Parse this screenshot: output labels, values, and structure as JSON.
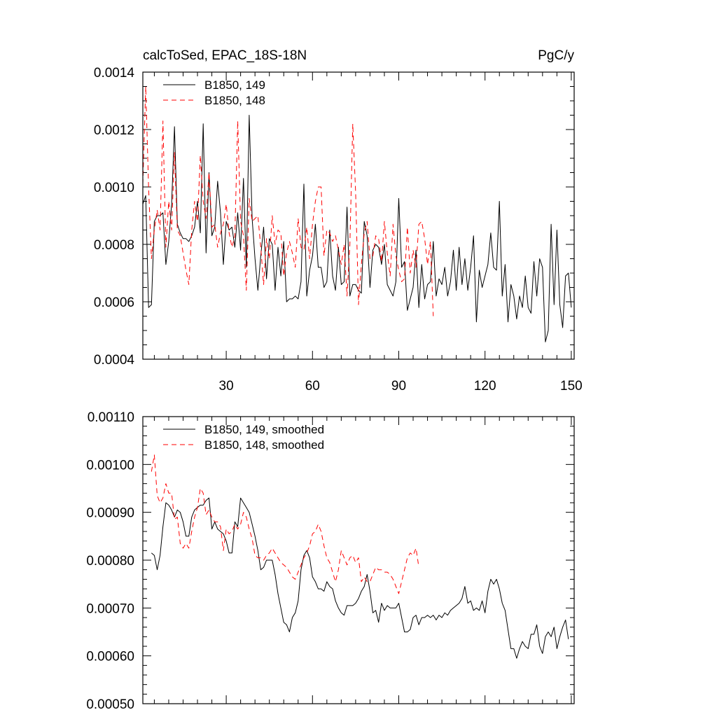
{
  "chart_data": [
    {
      "type": "line",
      "title_left": "calcToSed, EPAC_18S-18N",
      "title_right": "PgC/y",
      "xlim": [
        1,
        151
      ],
      "ylim": [
        0.0004,
        0.0014
      ],
      "x_ticks": [
        30,
        60,
        90,
        120,
        150
      ],
      "x_tick_labels": [
        "30",
        "60",
        "90",
        "120",
        "150"
      ],
      "y_ticks": [
        0.0004,
        0.0006,
        0.0008,
        0.001,
        0.0012,
        0.0014
      ],
      "y_tick_labels": [
        "0.0004",
        "0.0006",
        "0.0008",
        "0.0010",
        "0.0012",
        "0.0014"
      ],
      "grid": false,
      "legend_position": "top-left",
      "series": [
        {
          "name": "B1850, 149",
          "color": "#000000",
          "dash": "solid",
          "x_start": 1,
          "values": [
            0.00094,
            0.00097,
            0.00058,
            0.00059,
            0.00088,
            0.0009,
            0.0009,
            0.00091,
            0.00073,
            0.00081,
            0.00094,
            0.00121,
            0.00087,
            0.00084,
            0.00082,
            0.00082,
            0.00081,
            0.00083,
            0.00086,
            0.00095,
            0.00084,
            0.00122,
            0.00077,
            0.00105,
            0.00083,
            0.00086,
            0.00102,
            0.00091,
            0.00073,
            0.00088,
            0.00085,
            0.00086,
            0.00079,
            0.00091,
            0.00078,
            0.00103,
            0.00072,
            0.00125,
            0.00089,
            0.00075,
            0.00064,
            0.00076,
            0.00086,
            0.00068,
            0.00082,
            0.0008,
            0.00064,
            0.00079,
            0.00069,
            0.00081,
            0.0006,
            0.00061,
            0.00061,
            0.00062,
            0.00061,
            0.00067,
            0.00101,
            0.00062,
            0.00071,
            0.00076,
            0.00087,
            0.00072,
            0.00072,
            0.00065,
            0.00067,
            0.00085,
            0.00069,
            0.00064,
            0.00079,
            0.00066,
            0.00067,
            0.00093,
            0.00062,
            0.00066,
            0.00066,
            0.00064,
            0.00063,
            0.00088,
            0.00083,
            0.00065,
            0.00078,
            0.0008,
            0.00079,
            0.00073,
            0.0008,
            0.00066,
            0.00064,
            0.00062,
            0.00067,
            0.00096,
            0.00072,
            0.00074,
            0.00057,
            0.00061,
            0.00065,
            0.00078,
            0.00058,
            0.00073,
            0.00061,
            0.00066,
            0.00067,
            0.00081,
            0.00062,
            0.00068,
            0.00066,
            0.00072,
            0.00062,
            0.00067,
            0.00078,
            0.00064,
            0.00079,
            0.00066,
            0.00075,
            0.00064,
            0.00072,
            0.00083,
            0.00053,
            0.00071,
            0.00065,
            0.00069,
            0.00073,
            0.00084,
            0.00072,
            0.00071,
            0.00095,
            0.00062,
            0.00073,
            0.00053,
            0.00066,
            0.00062,
            0.00054,
            0.00062,
            0.00058,
            0.00069,
            0.00058,
            0.00056,
            0.00074,
            0.00062,
            0.00075,
            0.00072,
            0.00046,
            0.0005,
            0.00087,
            0.00059,
            0.00085,
            0.00059,
            0.00051,
            0.00069,
            0.0007,
            0.00058
          ]
        },
        {
          "name": "B1850, 148",
          "color": "#ff0000",
          "dash": "dashed",
          "x_start": 1,
          "values": [
            0.00101,
            0.00135,
            0.001,
            0.00075,
            0.00085,
            0.00092,
            0.00085,
            0.00123,
            0.00079,
            0.00095,
            0.00085,
            0.00112,
            0.00085,
            0.00083,
            0.00077,
            0.00071,
            0.00066,
            0.00085,
            0.00095,
            0.00088,
            0.00111,
            0.00095,
            0.00089,
            0.00105,
            0.00086,
            0.00087,
            0.00079,
            0.00084,
            0.00087,
            0.00094,
            0.00084,
            0.00079,
            0.00083,
            0.00123,
            0.00088,
            0.00083,
            0.00064,
            0.00096,
            0.00088,
            0.00089,
            0.0009,
            0.00079,
            0.00066,
            0.00082,
            0.00075,
            0.0009,
            0.0008,
            0.00085,
            0.00084,
            0.00069,
            0.00077,
            0.00081,
            0.00077,
            0.00072,
            0.00089,
            0.00079,
            0.00078,
            0.00086,
            0.00075,
            0.00087,
            0.00095,
            0.001,
            0.001,
            0.00076,
            0.00085,
            0.00084,
            0.00081,
            0.00083,
            0.00078,
            0.00073,
            0.0008,
            0.00062,
            0.0008,
            0.00122,
            0.00098,
            0.00059,
            0.00073,
            0.00084,
            0.00088,
            0.00075,
            0.00076,
            0.00083,
            0.00082,
            0.00074,
            0.00088,
            0.00077,
            0.00069,
            0.00087,
            0.00076,
            0.00071,
            0.00067,
            0.00068,
            0.00086,
            0.0007,
            0.00078,
            0.00072,
            0.00087,
            0.00088,
            0.00082,
            0.00073,
            0.00081,
            0.00055
          ]
        }
      ]
    },
    {
      "type": "line",
      "xlim": [
        1,
        151
      ],
      "ylim": [
        0.0005,
        0.0011
      ],
      "x_ticks": [
        30,
        60,
        90,
        120,
        150
      ],
      "y_ticks": [
        0.0005,
        0.0006,
        0.0007,
        0.0008,
        0.0009,
        0.001,
        0.0011
      ],
      "y_tick_labels": [
        "0.00050",
        "0.00060",
        "0.00070",
        "0.00080",
        "0.00090",
        "0.00100",
        "0.00110"
      ],
      "grid": false,
      "legend_position": "top-left",
      "series": [
        {
          "name": "B1850, 149, smoothed",
          "color": "#000000",
          "dash": "solid",
          "x_start": 4,
          "values": [
            0.000815,
            0.00081,
            0.00078,
            0.00081,
            0.00087,
            0.00092,
            0.000915,
            0.000905,
            0.00089,
            0.000905,
            0.0009,
            0.00088,
            0.00085,
            0.00085,
            0.00089,
            0.000905,
            0.00091,
            0.000915,
            0.000915,
            0.000925,
            0.00093,
            0.000865,
            0.00088,
            0.000865,
            0.00086,
            0.000855,
            0.00084,
            0.000815,
            0.000815,
            0.00088,
            0.00087,
            0.00093,
            0.00092,
            0.00091,
            0.0009,
            0.000875,
            0.00085,
            0.00082,
            0.00078,
            0.000785,
            0.0008,
            0.0008,
            0.0008,
            0.00077,
            0.00073,
            0.0007,
            0.00067,
            0.000665,
            0.00065,
            0.00068,
            0.00069,
            0.000715,
            0.00078,
            0.00081,
            0.00082,
            0.000805,
            0.000765,
            0.000755,
            0.00074,
            0.00074,
            0.000735,
            0.000755,
            0.000745,
            0.00074,
            0.000715,
            0.0007,
            0.00069,
            0.000685,
            0.000705,
            0.000705,
            0.000705,
            0.00071,
            0.00072,
            0.000735,
            0.000745,
            0.00077,
            0.000735,
            0.00069,
            0.000695,
            0.00067,
            0.00071,
            0.000695,
            0.000705,
            0.0007,
            0.0007,
            0.0007,
            0.00071,
            0.00068,
            0.00065,
            0.00065,
            0.000655,
            0.00068,
            0.000685,
            0.000665,
            0.00068,
            0.00068,
            0.000685,
            0.00068,
            0.000685,
            0.000675,
            0.000685,
            0.00068,
            0.00069,
            0.000685,
            0.000695,
            0.0007,
            0.000705,
            0.00071,
            0.00072,
            0.000745,
            0.00071,
            0.000715,
            0.000695,
            0.0007,
            0.000695,
            0.000715,
            0.00069,
            0.000735,
            0.00076,
            0.00075,
            0.00076,
            0.00074,
            0.00071,
            0.000695,
            0.000655,
            0.000615,
            0.000615,
            0.000595,
            0.000615,
            0.00063,
            0.00062,
            0.000615,
            0.000645,
            0.000645,
            0.000665,
            0.00062,
            0.000605,
            0.00064,
            0.00065,
            0.00064,
            0.00066,
            0.000615,
            0.00064,
            0.00066,
            0.000675,
            0.000635
          ]
        },
        {
          "name": "B1850, 148, smoothed",
          "color": "#ff0000",
          "dash": "dashed",
          "x_start": 4,
          "values": [
            0.000985,
            0.00102,
            0.000935,
            0.00092,
            0.00093,
            0.00096,
            0.00094,
            0.00094,
            0.000885,
            0.00089,
            0.000835,
            0.000825,
            0.000835,
            0.000825,
            0.00086,
            0.00089,
            0.00091,
            0.00095,
            0.00094,
            0.000895,
            0.000905,
            0.00089,
            0.00088,
            0.00088,
            0.00087,
            0.00082,
            0.000865,
            0.000855,
            0.00086,
            0.000875,
            0.000865,
            0.000875,
            0.0009,
            0.00089,
            0.000865,
            0.000845,
            0.00081,
            0.000805,
            0.000805,
            0.0008,
            0.00081,
            0.000815,
            0.000825,
            0.000815,
            0.000805,
            0.000795,
            0.00079,
            0.000785,
            0.000775,
            0.000765,
            0.00076,
            0.000775,
            0.00079,
            0.000805,
            0.000815,
            0.00083,
            0.000855,
            0.00086,
            0.000875,
            0.00086,
            0.00083,
            0.000805,
            0.000795,
            0.000775,
            0.000755,
            0.00078,
            0.00082,
            0.000805,
            0.00079,
            0.000805,
            0.00081,
            0.000795,
            0.000805,
            0.000755,
            0.000765,
            0.000755,
            0.000755,
            0.00077,
            0.000785,
            0.00078,
            0.00078,
            0.000775,
            0.000775,
            0.00077,
            0.00076,
            0.000745,
            0.00073,
            0.000755,
            0.00078,
            0.000805,
            0.000815,
            0.00081,
            0.000825,
            0.000785
          ]
        }
      ]
    }
  ]
}
